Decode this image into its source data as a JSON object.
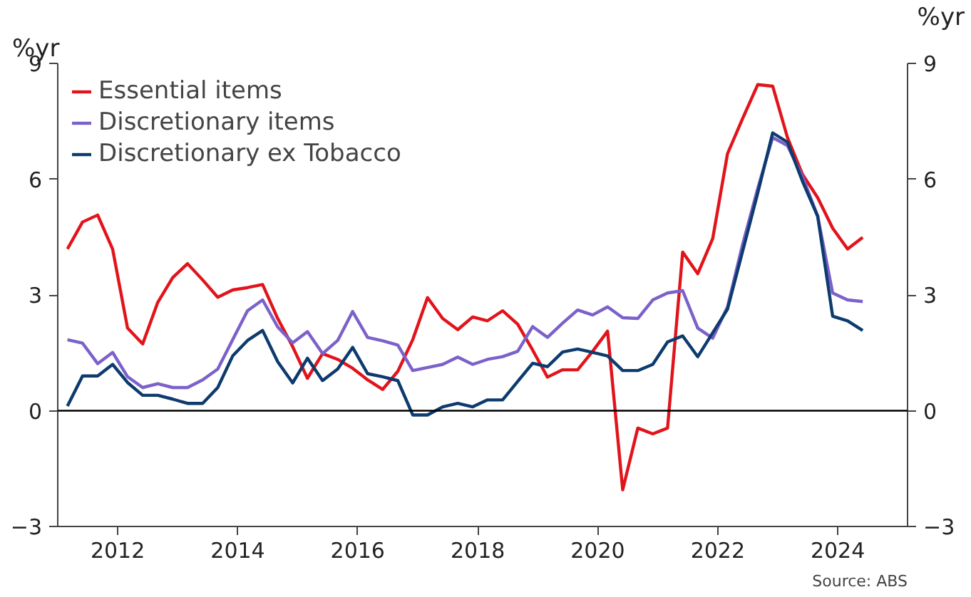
{
  "chart_data": {
    "type": "line",
    "ylabel": "%yr",
    "y2label": "%yr",
    "x": [
      "2011-03",
      "2011-06",
      "2011-09",
      "2011-12",
      "2012-03",
      "2012-06",
      "2012-09",
      "2012-12",
      "2013-03",
      "2013-06",
      "2013-09",
      "2013-12",
      "2014-03",
      "2014-06",
      "2014-09",
      "2014-12",
      "2015-03",
      "2015-06",
      "2015-09",
      "2015-12",
      "2016-03",
      "2016-06",
      "2016-09",
      "2016-12",
      "2017-03",
      "2017-06",
      "2017-09",
      "2017-12",
      "2018-03",
      "2018-06",
      "2018-09",
      "2018-12",
      "2019-03",
      "2019-06",
      "2019-09",
      "2019-12",
      "2020-03",
      "2020-06",
      "2020-09",
      "2020-12",
      "2021-03",
      "2021-06",
      "2021-09",
      "2021-12",
      "2022-03",
      "2022-06",
      "2022-09",
      "2022-12",
      "2023-03",
      "2023-06",
      "2023-09",
      "2023-12",
      "2024-03",
      "2024-06"
    ],
    "series": [
      {
        "name": "Essential items",
        "color": "#e2141b",
        "values": [
          4.19,
          4.89,
          5.07,
          4.19,
          2.14,
          1.73,
          2.81,
          3.45,
          3.81,
          3.39,
          2.94,
          3.13,
          3.19,
          3.27,
          2.39,
          1.66,
          0.84,
          1.48,
          1.33,
          1.1,
          0.8,
          0.55,
          1.02,
          1.84,
          2.93,
          2.39,
          2.1,
          2.43,
          2.33,
          2.59,
          2.24,
          1.57,
          0.87,
          1.06,
          1.06,
          1.54,
          2.06,
          -2.05,
          -0.45,
          -0.6,
          -0.45,
          4.11,
          3.55,
          4.46,
          6.66,
          7.57,
          8.45,
          8.41,
          7.08,
          6.12,
          5.52,
          4.73,
          4.19,
          4.49
        ]
      },
      {
        "name": "Discretionary items",
        "color": "#7b61c9",
        "values": [
          1.84,
          1.75,
          1.22,
          1.51,
          0.88,
          0.6,
          0.7,
          0.6,
          0.6,
          0.8,
          1.08,
          1.84,
          2.59,
          2.87,
          2.17,
          1.76,
          2.05,
          1.48,
          1.82,
          2.57,
          1.9,
          1.81,
          1.7,
          1.04,
          1.12,
          1.2,
          1.39,
          1.2,
          1.33,
          1.4,
          1.54,
          2.18,
          1.9,
          2.27,
          2.61,
          2.48,
          2.69,
          2.41,
          2.39,
          2.87,
          3.05,
          3.11,
          2.14,
          1.88,
          2.69,
          4.31,
          5.76,
          7.08,
          6.87,
          6.06,
          5.04,
          3.05,
          2.87,
          2.83
        ]
      },
      {
        "name": "Discretionary ex Tobacco",
        "color": "#0d3b6e",
        "values": [
          0.12,
          0.9,
          0.9,
          1.2,
          0.73,
          0.4,
          0.4,
          0.3,
          0.19,
          0.19,
          0.6,
          1.42,
          1.82,
          2.08,
          1.27,
          0.72,
          1.36,
          0.78,
          1.08,
          1.64,
          0.96,
          0.88,
          0.78,
          -0.11,
          -0.11,
          0.1,
          0.19,
          0.1,
          0.28,
          0.28,
          0.76,
          1.23,
          1.14,
          1.52,
          1.6,
          1.51,
          1.42,
          1.04,
          1.04,
          1.2,
          1.78,
          1.94,
          1.4,
          2.02,
          2.63,
          4.13,
          5.64,
          7.2,
          6.96,
          5.94,
          5.04,
          2.45,
          2.33,
          2.08
        ]
      }
    ],
    "xlim": [
      "2011-01",
      "2025-03"
    ],
    "xticks": [
      {
        "value": "2012",
        "label": "2012"
      },
      {
        "value": "2014",
        "label": "2014"
      },
      {
        "value": "2016",
        "label": "2016"
      },
      {
        "value": "2018",
        "label": "2018"
      },
      {
        "value": "2020",
        "label": "2020"
      },
      {
        "value": "2022",
        "label": "2022"
      },
      {
        "value": "2024",
        "label": "2024"
      }
    ],
    "ylim": [
      -3,
      9
    ],
    "yticks": [
      -3,
      0,
      3,
      6,
      9
    ],
    "y2lim": [
      -3,
      9
    ],
    "y2ticks": [
      -3,
      0,
      3,
      6,
      9
    ],
    "ref_lines": [
      {
        "axis": "y",
        "value": 0,
        "color": "#000000"
      }
    ],
    "grid": false,
    "legend": "top left",
    "marker": "none",
    "line_style": "solid",
    "annotations": [
      "Source: ABS"
    ]
  }
}
